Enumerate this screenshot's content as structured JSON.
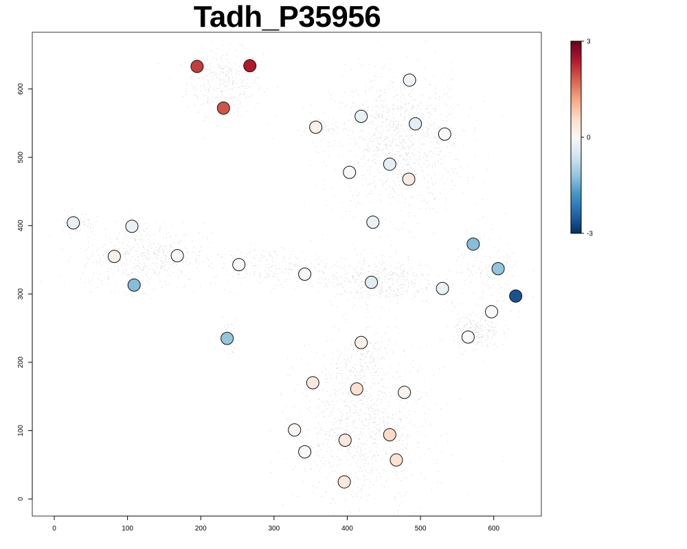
{
  "chart_data": {
    "type": "scatter",
    "title": "Tadh_P35956",
    "xlabel": "",
    "ylabel": "",
    "xlim": [
      -30,
      665
    ],
    "ylim": [
      -25,
      683
    ],
    "x_ticks": [
      0,
      100,
      200,
      300,
      400,
      500,
      600
    ],
    "y_ticks": [
      0,
      100,
      200,
      300,
      400,
      500,
      600
    ],
    "grid": false,
    "colorbar": {
      "min": -3,
      "max": 3,
      "ticks": [
        3,
        0,
        -3
      ],
      "low_color": "#053061",
      "mid_color": "#f7f7f7",
      "high_color": "#67001f"
    },
    "background_cloud_color": "#cccccc",
    "points": [
      {
        "x": 195,
        "y": 633,
        "v": 2.1
      },
      {
        "x": 267,
        "y": 634,
        "v": 2.4
      },
      {
        "x": 231,
        "y": 572,
        "v": 1.9
      },
      {
        "x": 485,
        "y": 613,
        "v": -0.1
      },
      {
        "x": 419,
        "y": 560,
        "v": -0.2
      },
      {
        "x": 357,
        "y": 544,
        "v": 0.15
      },
      {
        "x": 493,
        "y": 549,
        "v": -0.3
      },
      {
        "x": 533,
        "y": 534,
        "v": 0.0
      },
      {
        "x": 458,
        "y": 490,
        "v": -0.3
      },
      {
        "x": 403,
        "y": 478,
        "v": 0.0
      },
      {
        "x": 484,
        "y": 468,
        "v": 0.3
      },
      {
        "x": 435,
        "y": 405,
        "v": -0.2
      },
      {
        "x": 26,
        "y": 404,
        "v": -0.25
      },
      {
        "x": 106,
        "y": 399,
        "v": -0.2
      },
      {
        "x": 82,
        "y": 355,
        "v": 0.15
      },
      {
        "x": 168,
        "y": 356,
        "v": 0.0
      },
      {
        "x": 109,
        "y": 313,
        "v": -1.3
      },
      {
        "x": 252,
        "y": 343,
        "v": 0.0
      },
      {
        "x": 342,
        "y": 329,
        "v": 0.0
      },
      {
        "x": 433,
        "y": 317,
        "v": -0.35
      },
      {
        "x": 572,
        "y": 373,
        "v": -1.3
      },
      {
        "x": 606,
        "y": 337,
        "v": -1.2
      },
      {
        "x": 530,
        "y": 308,
        "v": -0.2
      },
      {
        "x": 630,
        "y": 297,
        "v": -2.6
      },
      {
        "x": 597,
        "y": 274,
        "v": 0.0
      },
      {
        "x": 565,
        "y": 237,
        "v": 0.0
      },
      {
        "x": 236,
        "y": 235,
        "v": -1.2
      },
      {
        "x": 419,
        "y": 229,
        "v": 0.15
      },
      {
        "x": 353,
        "y": 170,
        "v": 0.3
      },
      {
        "x": 413,
        "y": 161,
        "v": 0.5
      },
      {
        "x": 478,
        "y": 156,
        "v": 0.1
      },
      {
        "x": 328,
        "y": 101,
        "v": 0.05
      },
      {
        "x": 397,
        "y": 86,
        "v": 0.35
      },
      {
        "x": 458,
        "y": 94,
        "v": 0.6
      },
      {
        "x": 342,
        "y": 69,
        "v": 0.0
      },
      {
        "x": 467,
        "y": 57,
        "v": 0.45
      },
      {
        "x": 396,
        "y": 25,
        "v": 0.35
      }
    ],
    "clusters": [
      {
        "cx": 232,
        "cy": 610,
        "sx": 26,
        "sy": 24,
        "n": 320
      },
      {
        "cx": 468,
        "cy": 520,
        "sx": 45,
        "sy": 52,
        "n": 1000
      },
      {
        "cx": 365,
        "cy": 545,
        "sx": 10,
        "sy": 8,
        "n": 60
      },
      {
        "cx": 120,
        "cy": 355,
        "sx": 42,
        "sy": 24,
        "n": 480
      },
      {
        "cx": 30,
        "cy": 405,
        "sx": 12,
        "sy": 8,
        "n": 80
      },
      {
        "cx": 290,
        "cy": 340,
        "sx": 38,
        "sy": 14,
        "n": 220
      },
      {
        "cx": 440,
        "cy": 320,
        "sx": 40,
        "sy": 18,
        "n": 420
      },
      {
        "cx": 575,
        "cy": 245,
        "sx": 16,
        "sy": 14,
        "n": 200
      },
      {
        "cx": 595,
        "cy": 320,
        "sx": 26,
        "sy": 36,
        "n": 170
      },
      {
        "cx": 238,
        "cy": 237,
        "sx": 7,
        "sy": 14,
        "n": 50
      },
      {
        "cx": 420,
        "cy": 110,
        "sx": 45,
        "sy": 60,
        "n": 1000
      },
      {
        "cx": 418,
        "cy": 205,
        "sx": 16,
        "sy": 22,
        "n": 120
      }
    ]
  }
}
